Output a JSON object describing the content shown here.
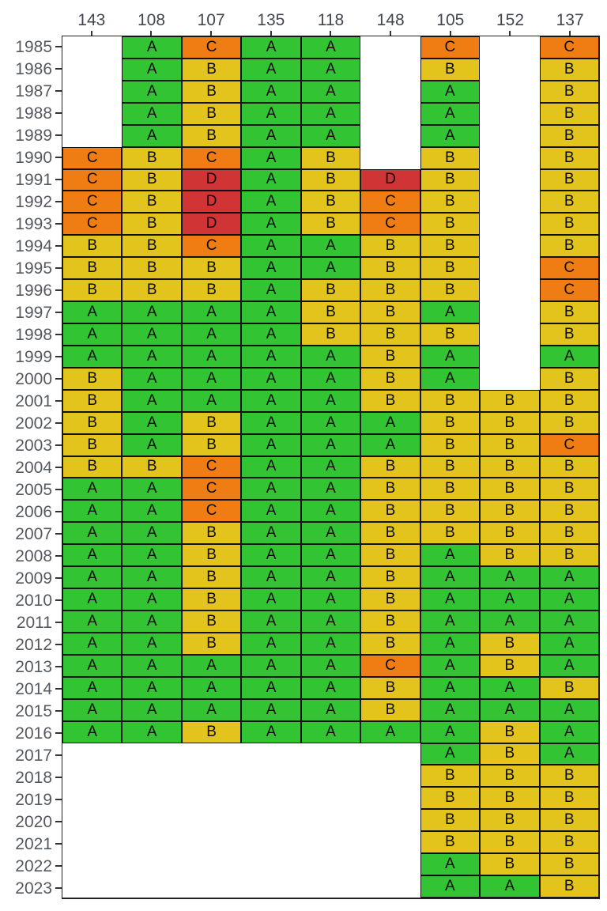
{
  "chart_data": {
    "type": "heatmap",
    "x_axis_position": "top",
    "y_axis_position": "left",
    "legend": "none",
    "columns": [
      "143",
      "108",
      "107",
      "135",
      "118",
      "148",
      "105",
      "152",
      "137"
    ],
    "rows": [
      "1985",
      "1986",
      "1987",
      "1988",
      "1989",
      "1990",
      "1991",
      "1992",
      "1993",
      "1994",
      "1995",
      "1996",
      "1997",
      "1998",
      "1999",
      "2000",
      "2001",
      "2002",
      "2003",
      "2004",
      "2005",
      "2006",
      "2007",
      "2008",
      "2009",
      "2010",
      "2011",
      "2012",
      "2013",
      "2014",
      "2015",
      "2016",
      "2017",
      "2018",
      "2019",
      "2020",
      "2021",
      "2022",
      "2023"
    ],
    "values": [
      [
        null,
        "A",
        "C",
        "A",
        "A",
        null,
        "C",
        null,
        "C"
      ],
      [
        null,
        "A",
        "B",
        "A",
        "A",
        null,
        "B",
        null,
        "B"
      ],
      [
        null,
        "A",
        "B",
        "A",
        "A",
        null,
        "A",
        null,
        "B"
      ],
      [
        null,
        "A",
        "B",
        "A",
        "A",
        null,
        "A",
        null,
        "B"
      ],
      [
        null,
        "A",
        "B",
        "A",
        "A",
        null,
        "A",
        null,
        "B"
      ],
      [
        "C",
        "B",
        "C",
        "A",
        "B",
        null,
        "B",
        null,
        "B"
      ],
      [
        "C",
        "B",
        "D",
        "A",
        "B",
        "D",
        "B",
        null,
        "B"
      ],
      [
        "C",
        "B",
        "D",
        "A",
        "B",
        "C",
        "B",
        null,
        "B"
      ],
      [
        "C",
        "B",
        "D",
        "A",
        "B",
        "C",
        "B",
        null,
        "B"
      ],
      [
        "B",
        "B",
        "C",
        "A",
        "A",
        "B",
        "B",
        null,
        "B"
      ],
      [
        "B",
        "B",
        "B",
        "A",
        "A",
        "B",
        "B",
        null,
        "C"
      ],
      [
        "B",
        "B",
        "B",
        "A",
        "B",
        "B",
        "B",
        null,
        "C"
      ],
      [
        "A",
        "A",
        "A",
        "A",
        "B",
        "B",
        "A",
        null,
        "B"
      ],
      [
        "A",
        "A",
        "A",
        "A",
        "B",
        "B",
        "B",
        null,
        "B"
      ],
      [
        "A",
        "A",
        "A",
        "A",
        "A",
        "B",
        "A",
        null,
        "A"
      ],
      [
        "B",
        "A",
        "A",
        "A",
        "A",
        "B",
        "A",
        null,
        "B"
      ],
      [
        "B",
        "A",
        "A",
        "A",
        "A",
        "B",
        "B",
        "B",
        "B"
      ],
      [
        "B",
        "A",
        "B",
        "A",
        "A",
        "A",
        "B",
        "B",
        "B"
      ],
      [
        "B",
        "A",
        "B",
        "A",
        "A",
        "A",
        "B",
        "B",
        "C"
      ],
      [
        "B",
        "B",
        "C",
        "A",
        "A",
        "B",
        "B",
        "B",
        "B"
      ],
      [
        "A",
        "A",
        "C",
        "A",
        "A",
        "B",
        "B",
        "B",
        "B"
      ],
      [
        "A",
        "A",
        "C",
        "A",
        "A",
        "B",
        "B",
        "B",
        "B"
      ],
      [
        "A",
        "A",
        "B",
        "A",
        "A",
        "B",
        "B",
        "B",
        "B"
      ],
      [
        "A",
        "A",
        "B",
        "A",
        "A",
        "B",
        "A",
        "B",
        "B"
      ],
      [
        "A",
        "A",
        "B",
        "A",
        "A",
        "B",
        "A",
        "A",
        "A"
      ],
      [
        "A",
        "A",
        "B",
        "A",
        "A",
        "B",
        "A",
        "A",
        "A"
      ],
      [
        "A",
        "A",
        "B",
        "A",
        "A",
        "B",
        "A",
        "A",
        "A"
      ],
      [
        "A",
        "A",
        "B",
        "A",
        "A",
        "B",
        "A",
        "B",
        "A"
      ],
      [
        "A",
        "A",
        "A",
        "A",
        "A",
        "C",
        "A",
        "B",
        "A"
      ],
      [
        "A",
        "A",
        "A",
        "A",
        "A",
        "B",
        "A",
        "A",
        "B"
      ],
      [
        "A",
        "A",
        "A",
        "A",
        "A",
        "B",
        "A",
        "A",
        "A"
      ],
      [
        "A",
        "A",
        "B",
        "A",
        "A",
        "A",
        "A",
        "B",
        "A"
      ],
      [
        null,
        null,
        null,
        null,
        null,
        null,
        "A",
        "B",
        "A"
      ],
      [
        null,
        null,
        null,
        null,
        null,
        null,
        "B",
        "B",
        "B"
      ],
      [
        null,
        null,
        null,
        null,
        null,
        null,
        "B",
        "B",
        "B"
      ],
      [
        null,
        null,
        null,
        null,
        null,
        null,
        "B",
        "B",
        "B"
      ],
      [
        null,
        null,
        null,
        null,
        null,
        null,
        "B",
        "B",
        "B"
      ],
      [
        null,
        null,
        null,
        null,
        null,
        null,
        "A",
        "B",
        "B"
      ],
      [
        null,
        null,
        null,
        null,
        null,
        null,
        "A",
        "A",
        "B"
      ]
    ],
    "grade_colors": {
      "A": "#33c433",
      "B": "#e3c41c",
      "C": "#ef7d13",
      "D": "#d03434"
    }
  },
  "colors": {
    "background": "#ffffff",
    "cell_border": "#111111",
    "panel_border": "#222222",
    "tick": "#333333",
    "column_label": "#43474d",
    "year_label": "#555a61",
    "cell_text": "#0a0a0a"
  }
}
